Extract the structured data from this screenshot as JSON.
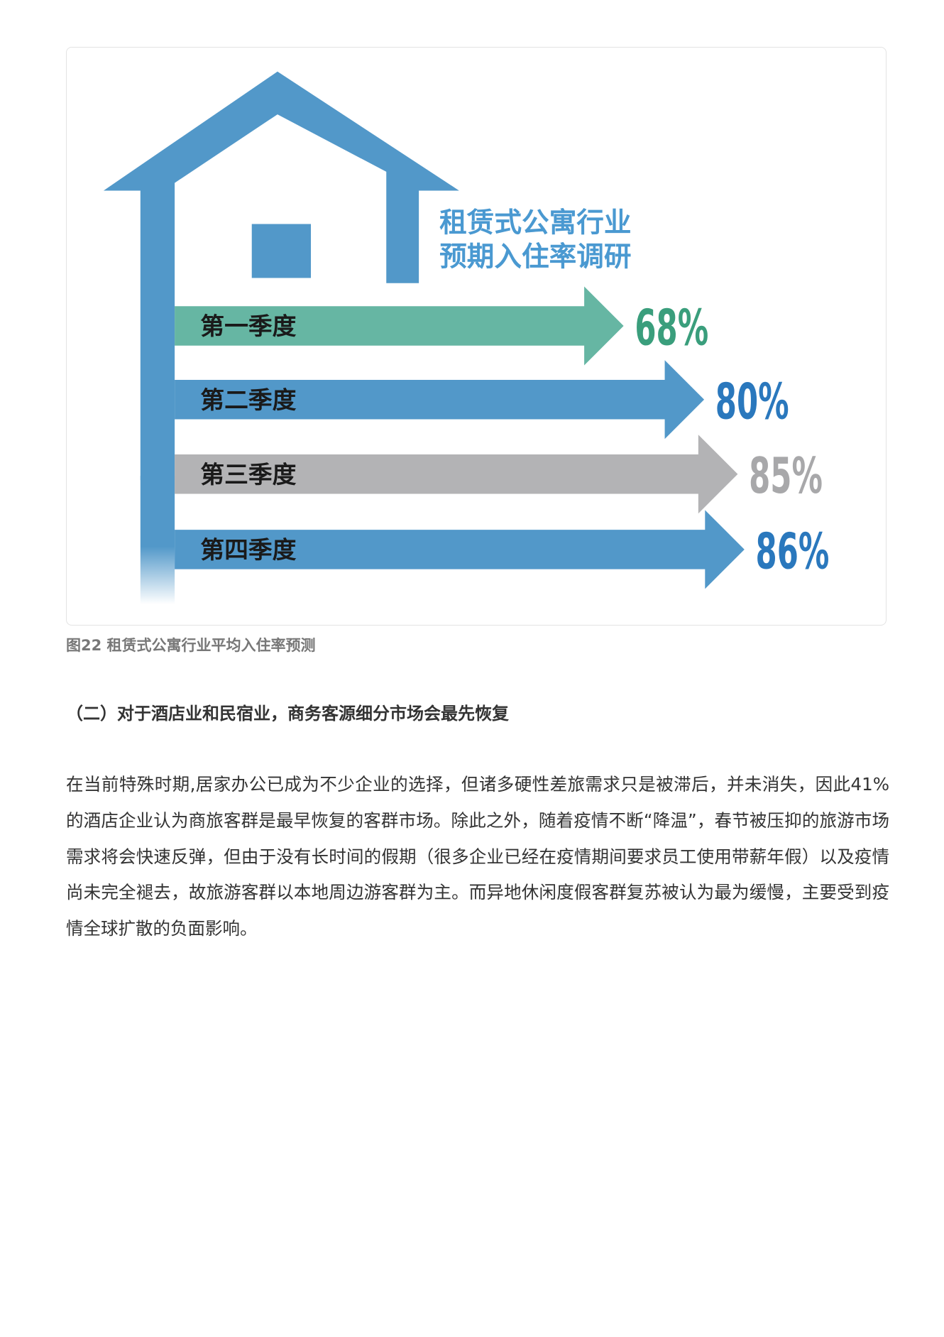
{
  "figure": {
    "infographic_title_line1": "租赁式公寓行业",
    "infographic_title_line2": "预期入住率调研",
    "caption": "图22 租赁式公寓行业平均入住率预测"
  },
  "chart_data": {
    "type": "bar",
    "orientation": "horizontal",
    "title": "租赁式公寓行业 预期入住率调研",
    "categories": [
      "第一季度",
      "第二季度",
      "第三季度",
      "第四季度"
    ],
    "values": [
      68,
      80,
      85,
      86
    ],
    "value_labels": [
      "68%",
      "80%",
      "85%",
      "86%"
    ],
    "unit": "%",
    "colors": [
      "#66b6a3",
      "#5298c9",
      "#b3b3b5",
      "#5298c9"
    ],
    "label_colors": [
      "#3a9e7c",
      "#2a78bd",
      "#a8a8aa",
      "#2a78bd"
    ]
  },
  "colors": {
    "house": "#5298c9",
    "title_text": "#4a99d1"
  },
  "section": {
    "heading": "（二）对于酒店业和民宿业，商务客源细分市场会最先恢复",
    "paragraph": "在当前特殊时期,居家办公已成为不少企业的选择，但诸多硬性差旅需求只是被滞后，并未消失，因此41%的酒店企业认为商旅客群是最早恢复的客群市场。除此之外，随着疫情不断“降温”，春节被压抑的旅游市场需求将会快速反弹，但由于没有长时间的假期（很多企业已经在疫情期间要求员工使用带薪年假）以及疫情尚未完全褪去，故旅游客群以本地周边游客群为主。而异地休闲度假客群复苏被认为最为缓慢，主要受到疫情全球扩散的负面影响。"
  }
}
